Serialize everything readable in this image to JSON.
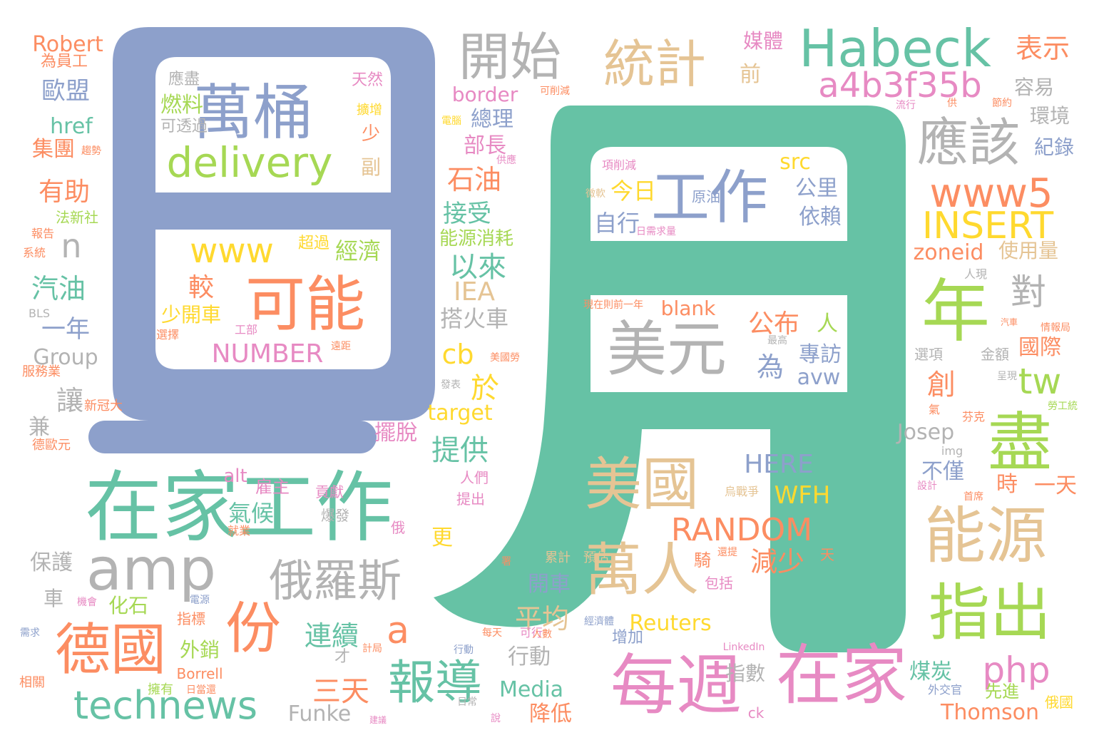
{
  "palette": {
    "green": "#66c2a5",
    "orange": "#fc8d62",
    "blue": "#8da0cb",
    "pink": "#e78ac3",
    "lime": "#a6d854",
    "yellow": "#ffd92f",
    "tan": "#e5c494",
    "gray": "#b3b3b3"
  },
  "glyphs": {
    "left_char": "日",
    "right_char": "月"
  },
  "words": [
    "在家工作",
    "在家",
    "每週",
    "萬桶",
    "可能",
    "delivery",
    "工作",
    "美元",
    "美國",
    "萬人",
    "年",
    "能源",
    "指出",
    "盡",
    "應該",
    "統計",
    "開始",
    "Habeck",
    "a4b3f35b",
    "www5",
    "INSERT",
    "德國",
    "份",
    "amp",
    "俄羅斯",
    "報導",
    "technews",
    "www",
    "NUMBER",
    "RANDOM",
    "a",
    "php",
    "tw",
    "對",
    "HERE",
    "WFH",
    "cb",
    "IEA",
    "Robert",
    "為員工",
    "歐盟",
    "href",
    "集團",
    "趨勢",
    "有助",
    "法新社",
    "報告",
    "系統",
    "n",
    "汽油",
    "一年",
    "Group",
    "讓",
    "兼",
    "德歐元",
    "保護",
    "車",
    "化石",
    "連續",
    "三天",
    "Funke",
    "Media",
    "降低",
    "行動",
    "Thomson",
    "Reuters",
    "平均",
    "開車",
    "累計",
    "預估",
    "騎",
    "包括",
    "減少",
    "人",
    "專訪",
    "為",
    "avw",
    "公布",
    "blank",
    "現在則前一年",
    "今日",
    "自行",
    "日需求量",
    "微軟",
    "原油",
    "公里",
    "依賴",
    "src",
    "項削減",
    "石油",
    "接受",
    "能源消耗",
    "以來",
    "搭火車",
    "於",
    "target",
    "提供",
    "擺脫",
    "人們",
    "提出",
    "更",
    "俄",
    "爆發",
    "貢獻",
    "雇主",
    "氣候",
    "alt",
    "就業",
    "燃料",
    "可透過",
    "應盡",
    "天然",
    "擴增",
    "少",
    "副",
    "超過",
    "經濟",
    "較",
    "少開車",
    "選擇",
    "工部",
    "遠距",
    "border",
    "可削減",
    "電腦",
    "總理",
    "部長",
    "供應",
    "媒體",
    "前",
    "表示",
    "容易",
    "環境",
    "紀錄",
    "流行",
    "供",
    "節約",
    "zoneid",
    "使用量",
    "人現",
    "國際",
    "金額",
    "選項",
    "創",
    "呈現",
    "勞工統",
    "氣",
    "芬克",
    "Josep",
    "img",
    "不僅",
    "時",
    "一天",
    "設計",
    "首席",
    "天",
    "烏戰爭",
    "外交官",
    "先進",
    "俄國",
    "ck",
    "煤炭",
    "指數",
    "經濟體",
    "增加",
    "LinkedIn",
    "行動",
    "可行",
    "才",
    "計局",
    "每天",
    "人數",
    "說",
    "外銷",
    "Borrell",
    "擁有",
    "日當還",
    "建議",
    "指標",
    "機會",
    "需求",
    "相關",
    "新冠大",
    "服務業",
    "BLS",
    "最高",
    "發表",
    "美國勞",
    "情報局",
    "汽車",
    "署",
    "還提",
    "電源",
    "日常"
  ]
}
